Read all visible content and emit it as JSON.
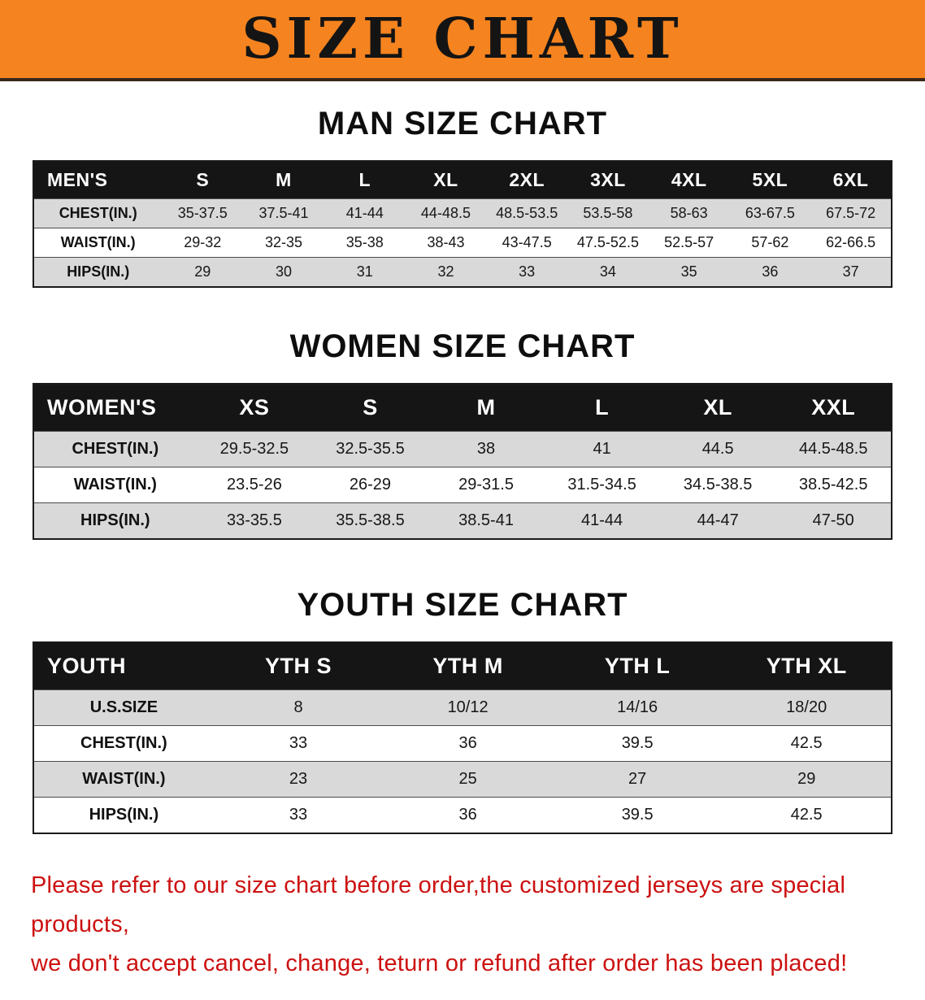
{
  "banner": {
    "title": "SIZE CHART"
  },
  "colors": {
    "banner_bg": "#f5831f",
    "table_header_bg": "#151515",
    "row_alt_bg": "#d9d9d9",
    "disclaimer_text": "#cc1111"
  },
  "sections": [
    {
      "heading": "MAN SIZE CHART",
      "table": {
        "header": [
          "MEN'S",
          "S",
          "M",
          "L",
          "XL",
          "2XL",
          "3XL",
          "4XL",
          "5XL",
          "6XL"
        ],
        "rows": [
          [
            "CHEST(IN.)",
            "35-37.5",
            "37.5-41",
            "41-44",
            "44-48.5",
            "48.5-53.5",
            "53.5-58",
            "58-63",
            "63-67.5",
            "67.5-72"
          ],
          [
            "WAIST(IN.)",
            "29-32",
            "32-35",
            "35-38",
            "38-43",
            "43-47.5",
            "47.5-52.5",
            "52.5-57",
            "57-62",
            "62-66.5"
          ],
          [
            "HIPS(IN.)",
            "29",
            "30",
            "31",
            "32",
            "33",
            "34",
            "35",
            "36",
            "37"
          ]
        ]
      }
    },
    {
      "heading": "WOMEN SIZE CHART",
      "table": {
        "header": [
          "WOMEN'S",
          "XS",
          "S",
          "M",
          "L",
          "XL",
          "XXL"
        ],
        "rows": [
          [
            "CHEST(IN.)",
            "29.5-32.5",
            "32.5-35.5",
            "38",
            "41",
            "44.5",
            "44.5-48.5"
          ],
          [
            "WAIST(IN.)",
            "23.5-26",
            "26-29",
            "29-31.5",
            "31.5-34.5",
            "34.5-38.5",
            "38.5-42.5"
          ],
          [
            "HIPS(IN.)",
            "33-35.5",
            "35.5-38.5",
            "38.5-41",
            "41-44",
            "44-47",
            "47-50"
          ]
        ]
      }
    },
    {
      "heading": "YOUTH SIZE CHART",
      "table": {
        "header": [
          "YOUTH",
          "YTH S",
          "YTH M",
          "YTH L",
          "YTH XL"
        ],
        "rows": [
          [
            "U.S.SIZE",
            "8",
            "10/12",
            "14/16",
            "18/20"
          ],
          [
            "CHEST(IN.)",
            "33",
            "36",
            "39.5",
            "42.5"
          ],
          [
            "WAIST(IN.)",
            "23",
            "25",
            "27",
            "29"
          ],
          [
            "HIPS(IN.)",
            "33",
            "36",
            "39.5",
            "42.5"
          ]
        ]
      }
    }
  ],
  "disclaimer": {
    "line1": "Please refer to our size chart before order,the customized jerseys are special products,",
    "line2": "we don't accept cancel, change, teturn or refund after order has been placed!"
  }
}
